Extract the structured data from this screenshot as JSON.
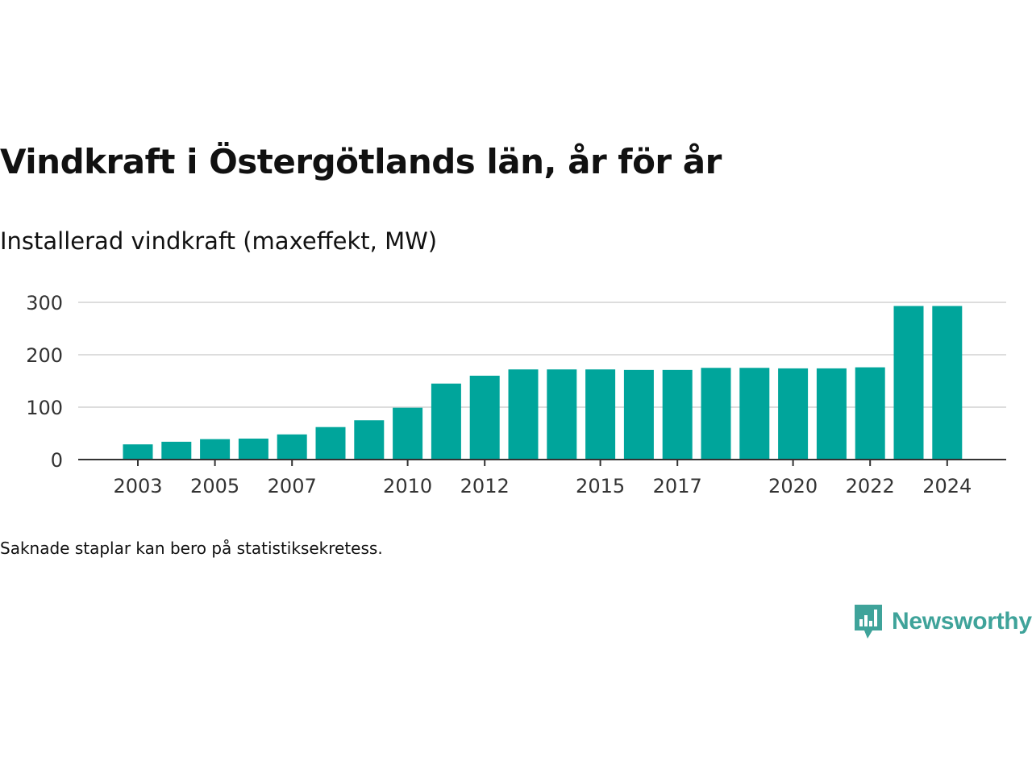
{
  "title": "Vindkraft i Östergötlands län, år för år",
  "subtitle": "Installerad vindkraft (maxeffekt, MW)",
  "footnote": "Saknade staplar kan bero på statistiksekretess.",
  "logo": {
    "name": "Newsworthy",
    "icon": "newsworthy-bar-chart-icon",
    "color": "#3fa39a"
  },
  "colors": {
    "bar": "#00a59b",
    "grid": "#dddddd",
    "axis": "#333333",
    "tick_text": "#333333"
  },
  "chart_data": {
    "type": "bar",
    "title": "Vindkraft i Östergötlands län, år för år",
    "subtitle": "Installerad vindkraft (maxeffekt, MW)",
    "xlabel": "",
    "ylabel": "",
    "ylim": [
      0,
      300
    ],
    "y_ticks": [
      0,
      100,
      200,
      300
    ],
    "x_tick_labels": [
      "2003",
      "2005",
      "2007",
      "2010",
      "2012",
      "2015",
      "2017",
      "2020",
      "2022",
      "2024"
    ],
    "grid": true,
    "legend": "none",
    "categories": [
      "2003",
      "2004",
      "2005",
      "2006",
      "2007",
      "2008",
      "2009",
      "2010",
      "2011",
      "2012",
      "2013",
      "2014",
      "2015",
      "2016",
      "2017",
      "2018",
      "2019",
      "2020",
      "2021",
      "2022",
      "2023",
      "2024"
    ],
    "values": [
      29,
      34,
      39,
      40,
      48,
      62,
      75,
      99,
      145,
      160,
      172,
      172,
      172,
      171,
      171,
      175,
      175,
      174,
      174,
      176,
      293,
      293
    ]
  }
}
